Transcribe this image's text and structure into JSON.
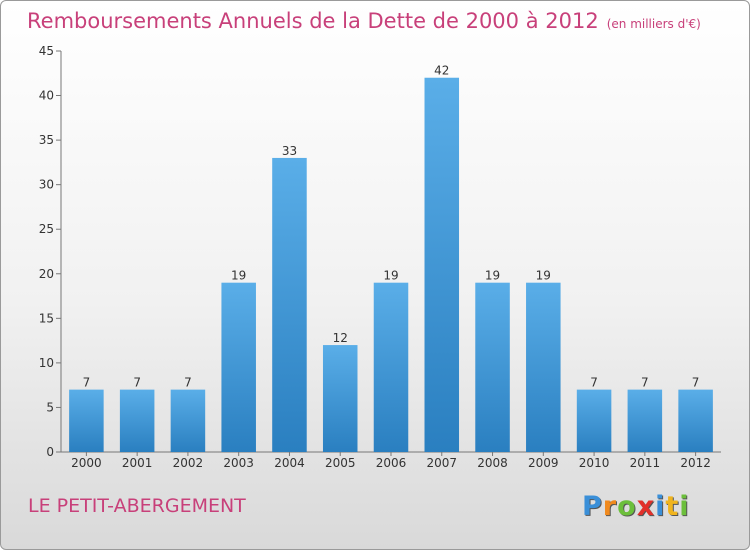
{
  "chart_data": {
    "type": "bar",
    "title": "Remboursements Annuels de la Dette de 2000 à 2012",
    "subtitle": "(en milliers d'€)",
    "categories": [
      "2000",
      "2001",
      "2002",
      "2003",
      "2004",
      "2005",
      "2006",
      "2007",
      "2008",
      "2009",
      "2010",
      "2011",
      "2012"
    ],
    "values": [
      7,
      7,
      7,
      19,
      33,
      12,
      19,
      42,
      19,
      19,
      7,
      7,
      7
    ],
    "data_labels": [
      "7",
      "7",
      "7",
      "19",
      "33",
      "12",
      "19",
      "42",
      "19",
      "19",
      "7",
      "7",
      "7"
    ],
    "ylim": [
      0,
      45
    ],
    "yticks": [
      0,
      5,
      10,
      15,
      20,
      25,
      30,
      35,
      40,
      45
    ],
    "ytick_labels": [
      "0",
      "5",
      "10",
      "15",
      "20",
      "25",
      "30",
      "35",
      "40",
      "45"
    ],
    "grid": false,
    "legend": "none",
    "bar_color_top": "#5aaee8",
    "bar_color_bottom": "#2a7fc0"
  },
  "commune_name": "LE PETIT-ABERGEMENT",
  "logo": {
    "letters": [
      "P",
      "r",
      "o",
      "x",
      "i",
      "t",
      "i"
    ],
    "colors": [
      "#3a8fd8",
      "#f08a1e",
      "#6cbf3b",
      "#e2302a",
      "#3a8fd8",
      "#f0b41e",
      "#6cbf3b"
    ]
  }
}
